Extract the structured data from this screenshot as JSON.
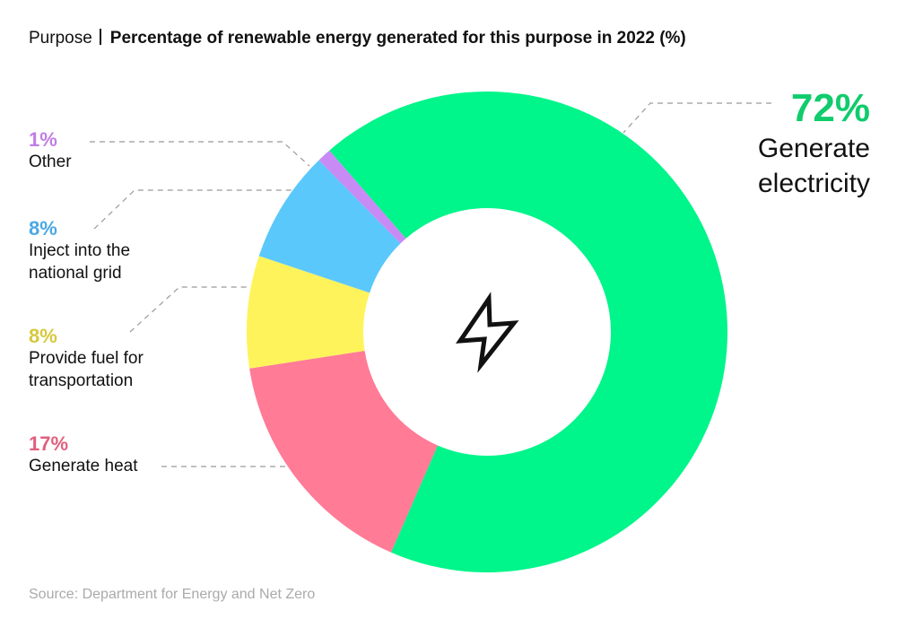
{
  "chart_data": {
    "type": "donut",
    "title_prefix": "Purpose",
    "title": "Percentage of renewable energy generated for this purpose in 2022 (%)",
    "categories": [
      "Generate electricity",
      "Generate heat",
      "Provide fuel for transportation",
      "Inject into the national grid",
      "Other"
    ],
    "values": [
      72,
      17,
      8,
      8,
      1
    ],
    "value_labels": [
      "72%",
      "17%",
      "8%",
      "8%",
      "1%"
    ],
    "colors": [
      "#00f58a",
      "#ff7b96",
      "#fff35c",
      "#5bc8fb",
      "#c88af5"
    ],
    "label_colors": [
      "#10cc6c",
      "#e0607e",
      "#d6c93c",
      "#4aa8e6",
      "#c07ee6"
    ],
    "source": "Source: Department for Energy and Net Zero"
  }
}
